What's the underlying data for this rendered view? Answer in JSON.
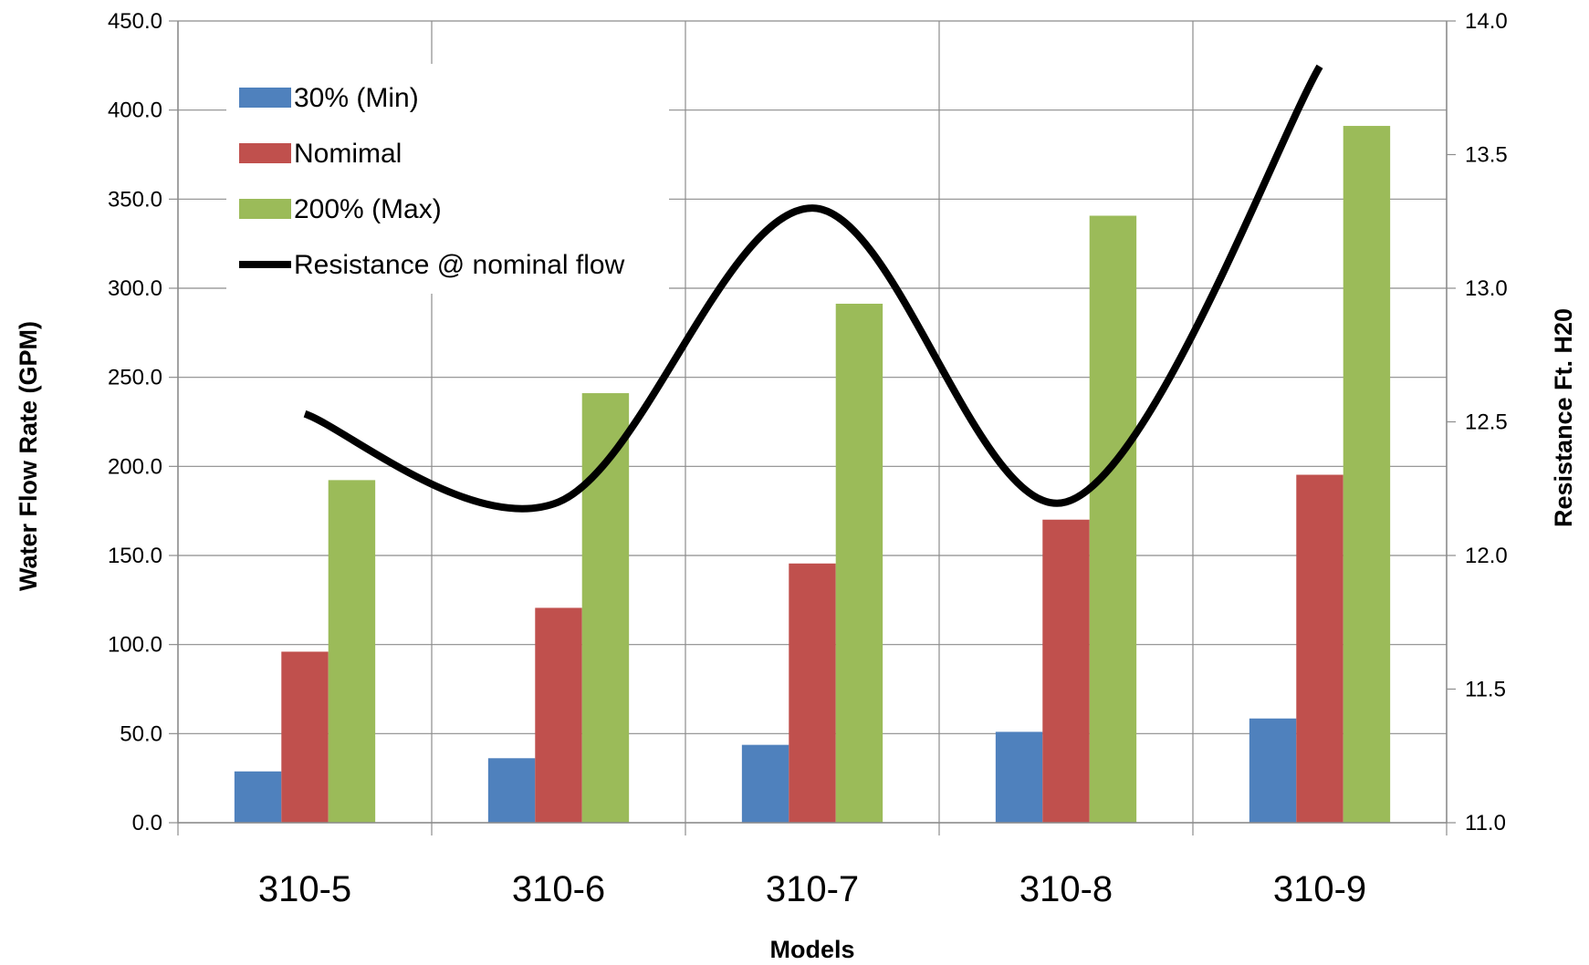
{
  "chart_data": {
    "type": "bar",
    "title": "",
    "xlabel": "Models",
    "ylabel": "Water Flow Rate (GPM)",
    "y2label": "Resistance Ft. H20",
    "categories": [
      "310-5",
      "310-6",
      "310-7",
      "310-8",
      "310-9"
    ],
    "ylim": [
      0,
      450
    ],
    "y2lim": [
      11.0,
      14.0
    ],
    "yticks": [
      "0.0",
      "50.0",
      "100.0",
      "150.0",
      "200.0",
      "250.0",
      "300.0",
      "350.0",
      "400.0",
      "450.0"
    ],
    "y2ticks": [
      "11.0",
      "11.5",
      "12.0",
      "12.5",
      "13.0",
      "13.5",
      "14.0"
    ],
    "grid": true,
    "legend_position": "top-left",
    "series": [
      {
        "name": "30% (Min)",
        "kind": "bar",
        "axis": "left",
        "color": "#4F81BD",
        "values": [
          28.8,
          36.2,
          43.7,
          51.0,
          58.5
        ]
      },
      {
        "name": "Nomimal",
        "kind": "bar",
        "axis": "left",
        "color": "#C0504D",
        "values": [
          96.0,
          120.6,
          145.5,
          170.1,
          195.3
        ]
      },
      {
        "name": "200% (Max)",
        "kind": "bar",
        "axis": "left",
        "color": "#9BBB59",
        "values": [
          192.3,
          241.1,
          291.3,
          340.7,
          391.1
        ]
      },
      {
        "name": "Resistance @ nominal flow",
        "kind": "line",
        "axis": "right",
        "smooth": true,
        "color": "#000000",
        "values": [
          12.53,
          12.2,
          13.3,
          12.2,
          13.83
        ]
      }
    ]
  }
}
